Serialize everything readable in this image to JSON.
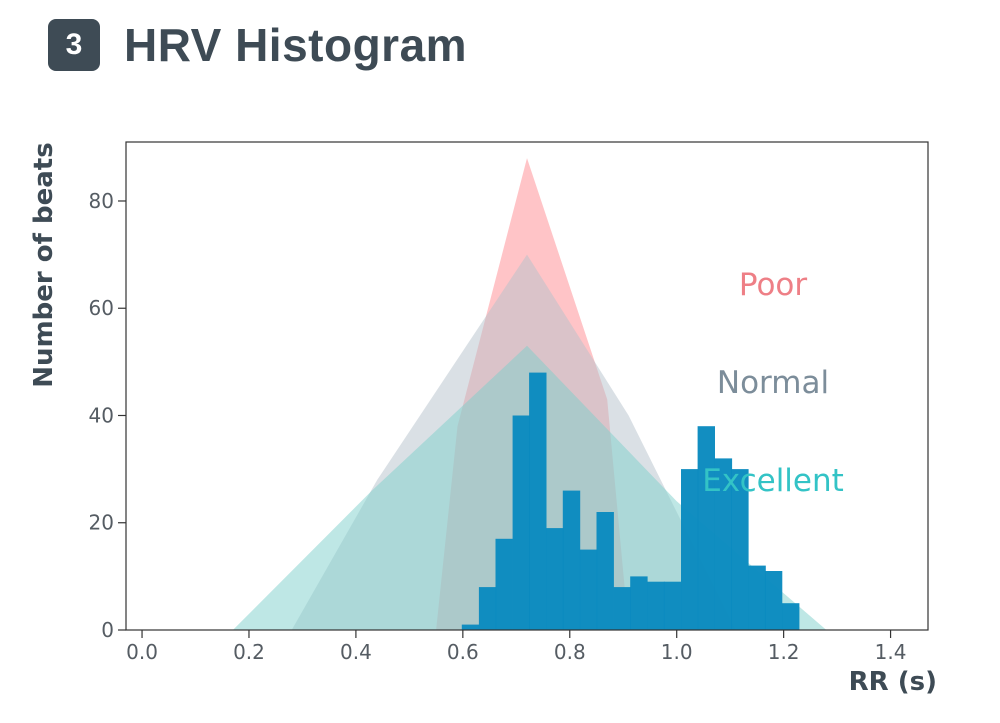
{
  "header": {
    "step_number": "3",
    "title": "HRV Histogram"
  },
  "chart_data": {
    "type": "bar",
    "xlabel": "RR (s)",
    "ylabel": "Number of beats",
    "xlim": [
      -0.03,
      1.47
    ],
    "ylim": [
      0,
      91
    ],
    "xticks": [
      0.0,
      0.2,
      0.4,
      0.6,
      0.8,
      1.0,
      1.2,
      1.4
    ],
    "xtick_labels": [
      "0.0",
      "0.2",
      "0.4",
      "0.6",
      "0.8",
      "1.0",
      "1.2",
      "1.4"
    ],
    "yticks": [
      0,
      20,
      40,
      60,
      80
    ],
    "ytick_labels": [
      "0",
      "20",
      "40",
      "60",
      "80"
    ],
    "bin_width": 0.0315,
    "bins": [
      {
        "x0": 0.598,
        "count": 1
      },
      {
        "x0": 0.63,
        "count": 8
      },
      {
        "x0": 0.661,
        "count": 17
      },
      {
        "x0": 0.693,
        "count": 40
      },
      {
        "x0": 0.724,
        "count": 48
      },
      {
        "x0": 0.756,
        "count": 19
      },
      {
        "x0": 0.787,
        "count": 26
      },
      {
        "x0": 0.819,
        "count": 15
      },
      {
        "x0": 0.85,
        "count": 22
      },
      {
        "x0": 0.882,
        "count": 8
      },
      {
        "x0": 0.913,
        "count": 10
      },
      {
        "x0": 0.945,
        "count": 9
      },
      {
        "x0": 0.976,
        "count": 9
      },
      {
        "x0": 1.008,
        "count": 30
      },
      {
        "x0": 1.039,
        "count": 38
      },
      {
        "x0": 1.071,
        "count": 32
      },
      {
        "x0": 1.102,
        "count": 30
      },
      {
        "x0": 1.134,
        "count": 12
      },
      {
        "x0": 1.165,
        "count": 11
      },
      {
        "x0": 1.197,
        "count": 5
      }
    ],
    "bar_color": "#0a8abf",
    "reference_regions": [
      {
        "name": "Poor",
        "color": "#ff8a90",
        "label_color": "#ee7f86",
        "points": [
          [
            0.55,
            0
          ],
          [
            0.59,
            38
          ],
          [
            0.72,
            88
          ],
          [
            0.87,
            43
          ],
          [
            0.91,
            0
          ]
        ]
      },
      {
        "name": "Normal",
        "color": "#b6c2cc",
        "label_color": "#7c8d9a",
        "points": [
          [
            0.28,
            0
          ],
          [
            0.44,
            28
          ],
          [
            0.72,
            70
          ],
          [
            0.91,
            40
          ],
          [
            1.11,
            0
          ]
        ]
      },
      {
        "name": "Excellent",
        "color": "#7ecfcc",
        "label_color": "#33c3c6",
        "points": [
          [
            0.17,
            0
          ],
          [
            0.43,
            26
          ],
          [
            0.72,
            53
          ],
          [
            1.0,
            24
          ],
          [
            1.28,
            0
          ]
        ]
      }
    ]
  }
}
